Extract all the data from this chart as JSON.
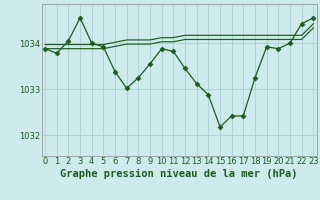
{
  "title": "Graphe pression niveau de la mer (hPa)",
  "background_color": "#ceeaec",
  "grid_color": "#aed4d6",
  "line_color": "#1a5c1a",
  "marker_color": "#1a5c1a",
  "x_ticks": [
    0,
    1,
    2,
    3,
    4,
    5,
    6,
    7,
    8,
    9,
    10,
    11,
    12,
    13,
    14,
    15,
    16,
    17,
    18,
    19,
    20,
    21,
    22,
    23
  ],
  "y_ticks": [
    1032,
    1033,
    1034
  ],
  "ylim": [
    1031.55,
    1034.85
  ],
  "xlim": [
    -0.3,
    23.3
  ],
  "main_series": [
    1033.88,
    1033.78,
    1034.05,
    1034.55,
    1034.0,
    1033.92,
    1033.38,
    1033.02,
    1033.25,
    1033.55,
    1033.88,
    1033.82,
    1033.45,
    1033.12,
    1032.88,
    1032.18,
    1032.42,
    1032.42,
    1033.25,
    1033.92,
    1033.88,
    1034.0,
    1034.42,
    1034.55
  ],
  "flat_series_1": [
    1033.97,
    1033.97,
    1033.97,
    1033.97,
    1033.97,
    1033.97,
    1034.02,
    1034.07,
    1034.07,
    1034.07,
    1034.12,
    1034.12,
    1034.17,
    1034.17,
    1034.17,
    1034.17,
    1034.17,
    1034.17,
    1034.17,
    1034.17,
    1034.17,
    1034.17,
    1034.17,
    1034.42
  ],
  "flat_series_2": [
    1033.88,
    1033.88,
    1033.88,
    1033.88,
    1033.88,
    1033.88,
    1033.93,
    1033.98,
    1033.98,
    1033.98,
    1034.03,
    1034.03,
    1034.08,
    1034.08,
    1034.08,
    1034.08,
    1034.08,
    1034.08,
    1034.08,
    1034.08,
    1034.08,
    1034.08,
    1034.08,
    1034.33
  ],
  "title_fontsize": 7.5,
  "tick_fontsize": 6,
  "label_color": "#1a5c1a"
}
